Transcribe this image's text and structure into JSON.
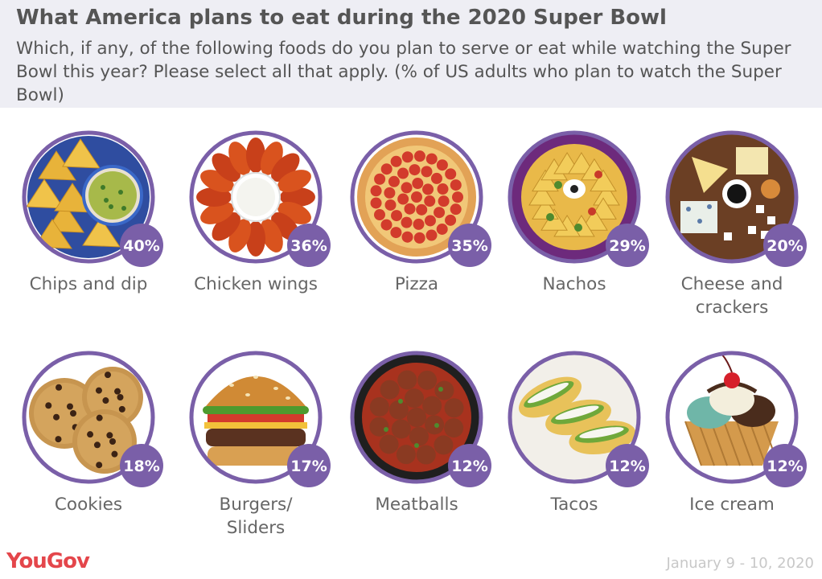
{
  "header": {
    "title": "What America plans to eat during the 2020 Super Bowl",
    "subtitle": "Which, if any, of the following foods do you plan to serve or eat while watching the Super Bowl this year? Please select all that apply. (% of US adults who plan to watch the Super Bowl)"
  },
  "chart_data": {
    "type": "bar",
    "title": "What America plans to eat during the 2020 Super Bowl",
    "subtitle": "Which, if any, of the following foods do you plan to serve or eat while watching the Super Bowl this year? Please select all that apply. (% of US adults who plan to watch the Super Bowl)",
    "categories": [
      "Chips and dip",
      "Chicken wings",
      "Pizza",
      "Nachos",
      "Cheese and crackers",
      "Cookies",
      "Burgers/ Sliders",
      "Meatballs",
      "Tacos",
      "Ice cream"
    ],
    "values": [
      40,
      36,
      35,
      29,
      20,
      18,
      17,
      12,
      12,
      12
    ],
    "value_labels": [
      "40%",
      "36%",
      "35%",
      "29%",
      "20%",
      "18%",
      "17%",
      "12%",
      "12%",
      "12%"
    ],
    "label_lines": [
      [
        "Chips and dip"
      ],
      [
        "Chicken wings"
      ],
      [
        "Pizza"
      ],
      [
        "Nachos"
      ],
      [
        "Cheese and",
        "crackers"
      ],
      [
        "Cookies"
      ],
      [
        "Burgers/",
        "Sliders"
      ],
      [
        "Meatballs"
      ],
      [
        "Tacos"
      ],
      [
        "Ice cream"
      ]
    ],
    "icons": [
      "chips-and-dip-icon",
      "chicken-wings-icon",
      "pizza-icon",
      "nachos-icon",
      "cheese-and-crackers-icon",
      "cookies-icon",
      "burger-icon",
      "meatballs-icon",
      "tacos-icon",
      "ice-cream-icon"
    ],
    "unit": "%"
  },
  "colors": {
    "ring": "#7a5fa8",
    "badge": "#7a5fa8",
    "header_bg": "#eeeef4",
    "text": "#555555",
    "brand": "#e4464b"
  },
  "footer": {
    "brand": "YouGov",
    "date": "January 9 - 10, 2020"
  }
}
